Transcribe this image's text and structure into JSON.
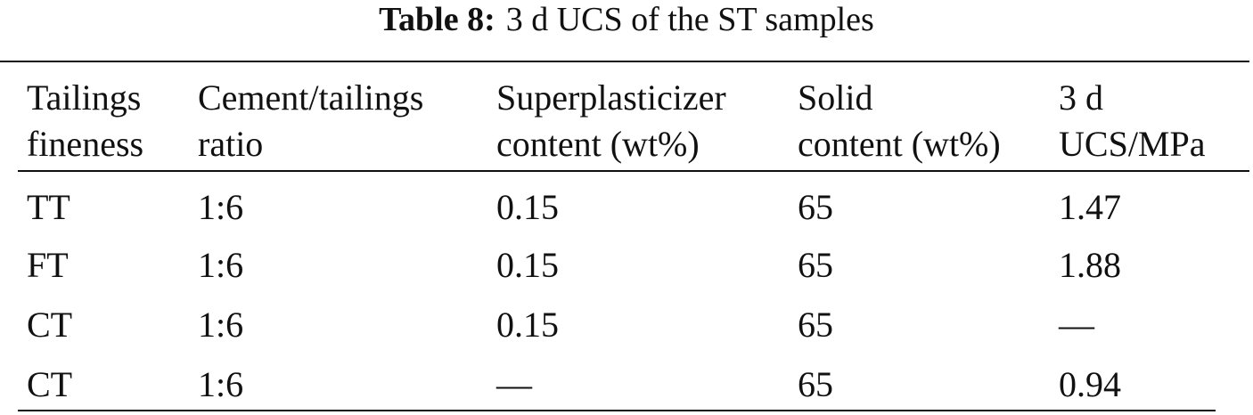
{
  "caption": {
    "label": "Table 8:",
    "text": "3 d UCS of the ST samples"
  },
  "table": {
    "header": [
      [
        "Tailings",
        "fineness"
      ],
      [
        "Cement/tailings",
        "ratio"
      ],
      [
        "Superplasticizer",
        "content (wt%)"
      ],
      [
        "Solid",
        "content (wt%)"
      ],
      [
        "3 d",
        "UCS/MPa"
      ]
    ],
    "rows": [
      [
        "TT",
        "1:6",
        "0.15",
        "65",
        "1.47"
      ],
      [
        "FT",
        "1:6",
        "0.15",
        "65",
        "1.88"
      ],
      [
        "CT",
        "1:6",
        "0.15",
        "65",
        "—"
      ],
      [
        "CT",
        "1:6",
        "—",
        "65",
        "0.94"
      ]
    ]
  }
}
